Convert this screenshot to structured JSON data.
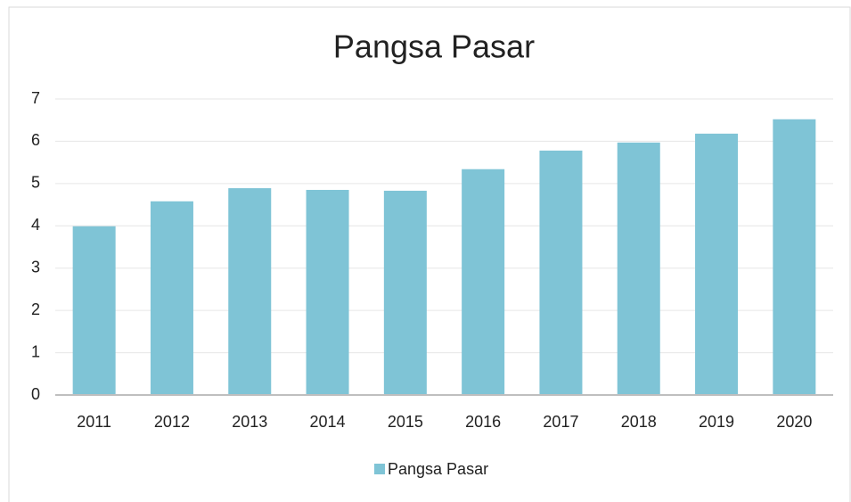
{
  "chart_data": {
    "type": "bar",
    "title": "Pangsa Pasar",
    "categories": [
      "2011",
      "2012",
      "2013",
      "2014",
      "2015",
      "2016",
      "2017",
      "2018",
      "2019",
      "2020"
    ],
    "series": [
      {
        "name": "Pangsa Pasar",
        "color": "#7fc4d6",
        "values": [
          3.99,
          4.58,
          4.89,
          4.85,
          4.83,
          5.34,
          5.78,
          5.97,
          6.18,
          6.52
        ]
      }
    ],
    "ylim": [
      0,
      7
    ],
    "yticks": [
      0,
      1,
      2,
      3,
      4,
      5,
      6,
      7
    ],
    "grid": true,
    "legend": "bottom"
  }
}
